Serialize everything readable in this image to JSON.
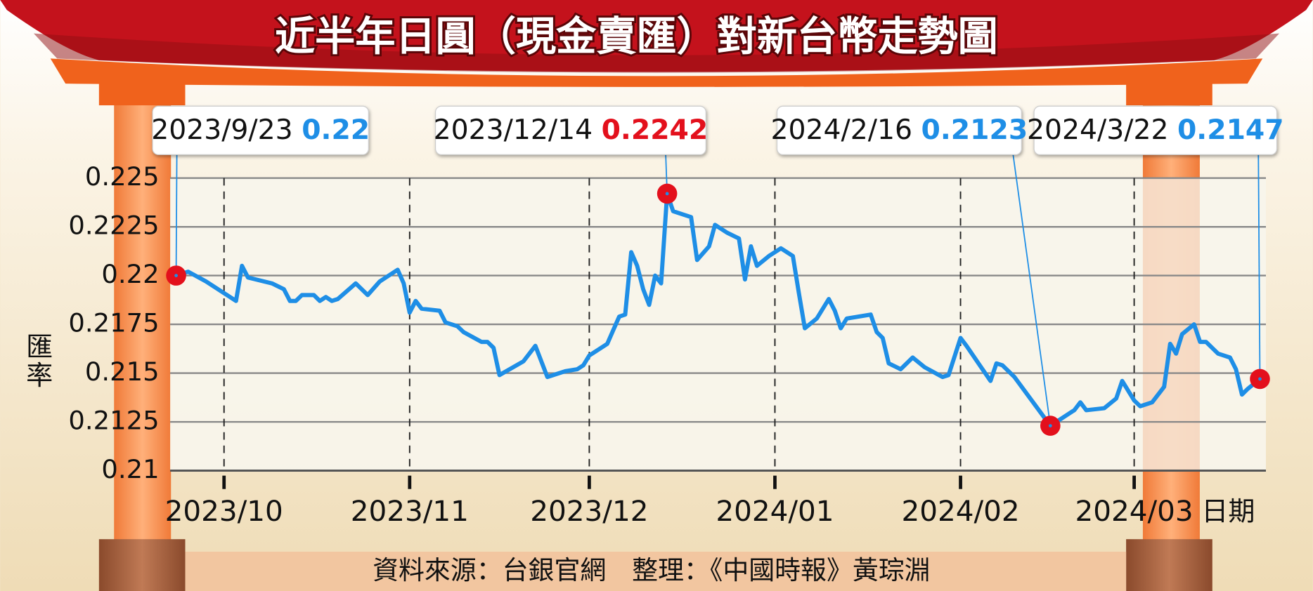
{
  "chart_data": {
    "type": "line",
    "title": "近半年日圓（現金賣匯）對新台幣走勢圖",
    "y_label": "匯率",
    "x_label": "日期",
    "source": "資料來源：台銀官網　整理：《中國時報》黃琮淵",
    "color": "#1e8ee6",
    "grid": true,
    "xlim": [
      "2023/9/22",
      "2024/3/23"
    ],
    "xticks": [
      "2023/10",
      "2023/11",
      "2023/12",
      "2024/01",
      "2024/02",
      "2024/03"
    ],
    "ylim": [
      0.21,
      0.225
    ],
    "yticks": [
      0.21,
      0.2125,
      0.215,
      0.2175,
      0.22,
      0.2225,
      0.225
    ],
    "x": [
      "2023/9/23",
      "2023/9/25",
      "2023/9/28",
      "2023/10/2",
      "2023/10/3",
      "2023/10/4",
      "2023/10/5",
      "2023/10/9",
      "2023/10/11",
      "2023/10/12",
      "2023/10/13",
      "2023/10/14",
      "2023/10/16",
      "2023/10/17",
      "2023/10/18",
      "2023/10/19",
      "2023/10/20",
      "2023/10/23",
      "2023/10/25",
      "2023/10/27",
      "2023/10/30",
      "2023/10/31",
      "2023/11/1",
      "2023/11/2",
      "2023/11/3",
      "2023/11/6",
      "2023/11/7",
      "2023/11/9",
      "2023/11/10",
      "2023/11/13",
      "2023/11/14",
      "2023/11/15",
      "2023/11/16",
      "2023/11/20",
      "2023/11/22",
      "2023/11/24",
      "2023/11/27",
      "2023/11/29",
      "2023/11/30",
      "2023/12/1",
      "2023/12/4",
      "2023/12/5",
      "2023/12/6",
      "2023/12/7",
      "2023/12/8",
      "2023/12/9",
      "2023/12/10",
      "2023/12/11",
      "2023/12/12",
      "2023/12/13",
      "2023/12/14",
      "2023/12/15",
      "2023/12/18",
      "2023/12/19",
      "2023/12/21",
      "2023/12/22",
      "2023/12/24",
      "2023/12/26",
      "2023/12/27",
      "2023/12/28",
      "2023/12/29",
      "2023/12/31",
      "2024/1/2",
      "2024/1/4",
      "2024/1/5",
      "2024/1/6",
      "2024/1/8",
      "2024/1/10",
      "2024/1/11",
      "2024/1/12",
      "2024/1/13",
      "2024/1/17",
      "2024/1/18",
      "2024/1/19",
      "2024/1/20",
      "2024/1/22",
      "2024/1/24",
      "2024/1/26",
      "2024/1/29",
      "2024/1/30",
      "2024/2/1",
      "2024/2/2",
      "2024/2/6",
      "2024/2/7",
      "2024/2/8",
      "2024/2/10",
      "2024/2/16",
      "2024/2/18",
      "2024/2/20",
      "2024/2/21",
      "2024/2/22",
      "2024/2/25",
      "2024/2/27",
      "2024/2/28",
      "2024/3/1",
      "2024/3/2",
      "2024/3/4",
      "2024/3/6",
      "2024/3/7",
      "2024/3/8",
      "2024/3/9",
      "2024/3/11",
      "2024/3/12",
      "2024/3/13",
      "2024/3/15",
      "2024/3/17",
      "2024/3/18",
      "2024/3/19",
      "2024/3/20",
      "2024/3/22"
    ],
    "values": [
      0.22,
      0.2202,
      0.2197,
      0.2189,
      0.2187,
      0.2205,
      0.2199,
      0.2196,
      0.2193,
      0.2187,
      0.2187,
      0.219,
      0.219,
      0.2187,
      0.2189,
      0.2187,
      0.2188,
      0.2196,
      0.219,
      0.2197,
      0.2203,
      0.2196,
      0.2181,
      0.2187,
      0.2183,
      0.2182,
      0.2176,
      0.2174,
      0.2171,
      0.2166,
      0.2166,
      0.2163,
      0.2149,
      0.2156,
      0.2164,
      0.2148,
      0.2151,
      0.2152,
      0.2154,
      0.2159,
      0.2165,
      0.2172,
      0.2179,
      0.218,
      0.2212,
      0.2205,
      0.2193,
      0.2185,
      0.22,
      0.2196,
      0.2242,
      0.2233,
      0.223,
      0.2208,
      0.2215,
      0.2226,
      0.2222,
      0.2219,
      0.2198,
      0.2215,
      0.2205,
      0.221,
      0.2214,
      0.221,
      0.2191,
      0.2173,
      0.2178,
      0.2188,
      0.2182,
      0.2173,
      0.2178,
      0.218,
      0.2171,
      0.2168,
      0.2155,
      0.2152,
      0.2158,
      0.2153,
      0.2148,
      0.2149,
      0.2168,
      0.2164,
      0.2146,
      0.2155,
      0.2154,
      0.2148,
      0.2123,
      0.2127,
      0.2131,
      0.2135,
      0.2131,
      0.2132,
      0.2137,
      0.2146,
      0.2136,
      0.2133,
      0.2135,
      0.2143,
      0.2165,
      0.216,
      0.217,
      0.2175,
      0.2166,
      0.2166,
      0.216,
      0.2158,
      0.2152,
      0.2139,
      0.2142,
      0.2147
    ],
    "annotations": [
      {
        "x": "2023/9/23",
        "y": 0.22,
        "color": "#1e8ee6"
      },
      {
        "x": "2023/12/14",
        "y": 0.2242,
        "color": "#e3101c"
      },
      {
        "x": "2024/2/16",
        "y": 0.2123,
        "color": "#1e8ee6"
      },
      {
        "x": "2024/3/22",
        "y": 0.2147,
        "color": "#1e8ee6"
      }
    ]
  }
}
